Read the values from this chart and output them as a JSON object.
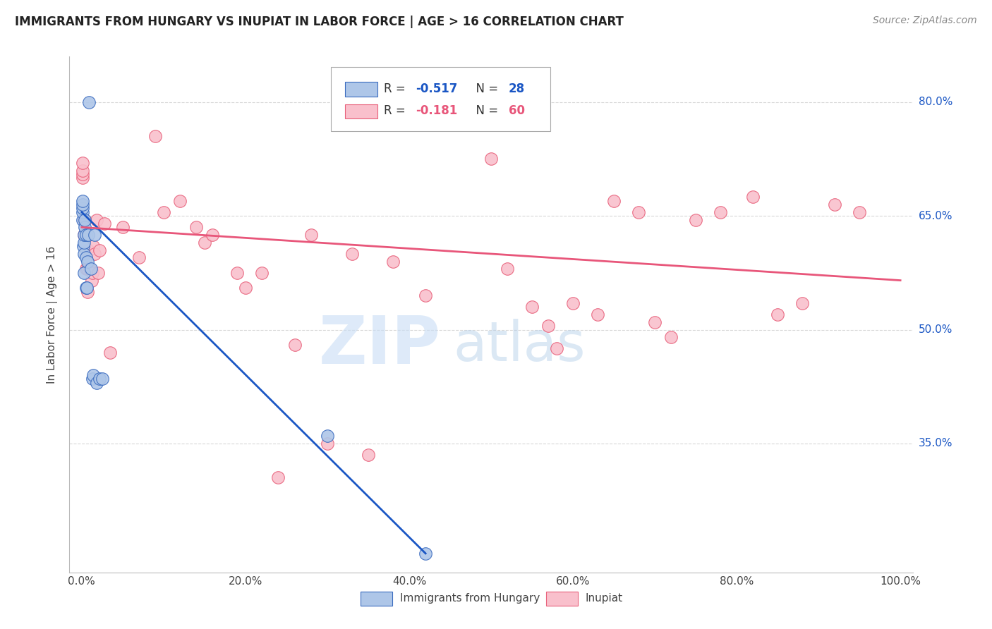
{
  "title": "IMMIGRANTS FROM HUNGARY VS INUPIAT IN LABOR FORCE | AGE > 16 CORRELATION CHART",
  "source": "Source: ZipAtlas.com",
  "ylabel": "In Labor Force | Age > 16",
  "watermark_zip": "ZIP",
  "watermark_atlas": "atlas",
  "legend_blue_r": "-0.517",
  "legend_blue_n": "28",
  "legend_pink_r": "-0.181",
  "legend_pink_n": "60",
  "blue_fill": "#aec6e8",
  "pink_fill": "#f9c0cc",
  "blue_edge": "#3a6bbf",
  "pink_edge": "#e8607a",
  "blue_line_color": "#1a56c4",
  "pink_line_color": "#e8567a",
  "blue_scatter_x": [
    0.001,
    0.001,
    0.001,
    0.001,
    0.001,
    0.002,
    0.003,
    0.003,
    0.003,
    0.003,
    0.004,
    0.004,
    0.005,
    0.005,
    0.005,
    0.006,
    0.007,
    0.008,
    0.009,
    0.011,
    0.013,
    0.014,
    0.016,
    0.018,
    0.022,
    0.025,
    0.3,
    0.42
  ],
  "blue_scatter_y": [
    0.645,
    0.655,
    0.66,
    0.665,
    0.67,
    0.61,
    0.575,
    0.6,
    0.615,
    0.625,
    0.635,
    0.645,
    0.555,
    0.595,
    0.625,
    0.555,
    0.59,
    0.625,
    0.8,
    0.58,
    0.435,
    0.44,
    0.625,
    0.43,
    0.435,
    0.435,
    0.36,
    0.205
  ],
  "pink_scatter_x": [
    0.001,
    0.001,
    0.001,
    0.001,
    0.003,
    0.003,
    0.004,
    0.005,
    0.007,
    0.007,
    0.008,
    0.01,
    0.012,
    0.013,
    0.014,
    0.016,
    0.018,
    0.02,
    0.022,
    0.028,
    0.035,
    0.05,
    0.07,
    0.09,
    0.1,
    0.12,
    0.14,
    0.15,
    0.16,
    0.19,
    0.2,
    0.22,
    0.24,
    0.26,
    0.28,
    0.3,
    0.33,
    0.35,
    0.38,
    0.42,
    0.45,
    0.47,
    0.5,
    0.52,
    0.55,
    0.57,
    0.58,
    0.6,
    0.63,
    0.65,
    0.68,
    0.7,
    0.72,
    0.75,
    0.78,
    0.82,
    0.85,
    0.88,
    0.92,
    0.95
  ],
  "pink_scatter_y": [
    0.7,
    0.705,
    0.71,
    0.72,
    0.625,
    0.645,
    0.645,
    0.58,
    0.55,
    0.58,
    0.605,
    0.58,
    0.565,
    0.575,
    0.61,
    0.6,
    0.645,
    0.575,
    0.605,
    0.64,
    0.47,
    0.635,
    0.595,
    0.755,
    0.655,
    0.67,
    0.635,
    0.615,
    0.625,
    0.575,
    0.555,
    0.575,
    0.305,
    0.48,
    0.625,
    0.35,
    0.6,
    0.335,
    0.59,
    0.545,
    0.795,
    0.795,
    0.725,
    0.58,
    0.53,
    0.505,
    0.475,
    0.535,
    0.52,
    0.67,
    0.655,
    0.51,
    0.49,
    0.645,
    0.655,
    0.675,
    0.52,
    0.535,
    0.665,
    0.655
  ],
  "xlim": [
    -0.015,
    1.015
  ],
  "ylim": [
    0.18,
    0.86
  ],
  "xticks": [
    0.0,
    0.2,
    0.4,
    0.6,
    0.8,
    1.0
  ],
  "xticklabels": [
    "0.0%",
    "20.0%",
    "40.0%",
    "60.0%",
    "80.0%",
    "100.0%"
  ],
  "ytick_positions": [
    0.35,
    0.5,
    0.65,
    0.8
  ],
  "yticklabels_right": [
    "35.0%",
    "50.0%",
    "65.0%",
    "80.0%"
  ],
  "grid_color": "#d8d8d8",
  "background_color": "#ffffff",
  "blue_trend_x": [
    0.0,
    0.42
  ],
  "blue_trend_y": [
    0.655,
    0.205
  ],
  "pink_trend_x": [
    0.0,
    1.0
  ],
  "pink_trend_y": [
    0.635,
    0.565
  ]
}
